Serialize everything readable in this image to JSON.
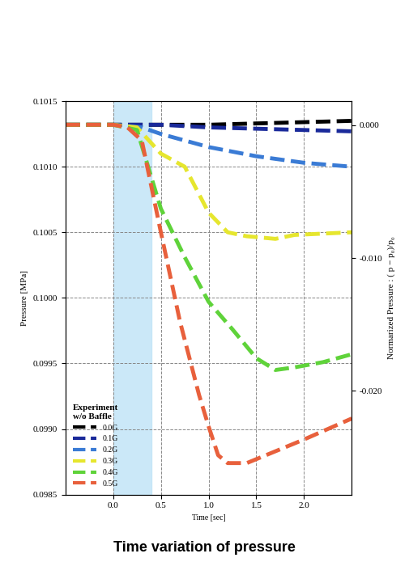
{
  "chart_data": {
    "type": "line",
    "title": "Time variation of pressure",
    "x_label": "Time [sec]",
    "y_label": "Pressure [MPa]",
    "y2_label": "Normarized Pressure : ( p − p₀)/p₀",
    "legend_title": "Experiment\nw/o Baffle",
    "legend": "lower left",
    "grid": true,
    "line_style": "dashed",
    "highlight": [
      0.0,
      0.4
    ],
    "xlim": [
      -0.5,
      2.5
    ],
    "xticks": [
      {
        "value": 0.0,
        "label": "0.0"
      },
      0.5,
      {
        "value": 1.0,
        "label": "1.0"
      },
      1.5,
      {
        "value": 2.0,
        "label": "2.0"
      }
    ],
    "ylim": [
      0.0985,
      0.1015
    ],
    "yticks": [
      0.0985,
      {
        "value": 0.099,
        "label": "0.0990"
      },
      0.0995,
      {
        "value": 0.1,
        "label": "0.1000"
      },
      0.1005,
      {
        "value": 0.101,
        "label": "0.1010"
      },
      0.1015
    ],
    "y2lim": [
      -0.0278,
      0.0018
    ],
    "y2ticks": [
      {
        "value": 0.0,
        "label": "0.000"
      },
      {
        "value": -0.01,
        "label": "-0.010"
      },
      {
        "value": -0.02,
        "label": "-0.020"
      }
    ],
    "series": [
      {
        "name": "0.0G",
        "color": "#000000",
        "x": [
          -0.5,
          0.0,
          0.5,
          1.0,
          1.5,
          2.0,
          2.5
        ],
        "values": [
          0.10132,
          0.10132,
          0.10132,
          0.10132,
          0.10133,
          0.10134,
          0.10135
        ]
      },
      {
        "name": "0.1G",
        "color": "#1a2a9a",
        "x": [
          -0.5,
          0.0,
          0.5,
          1.0,
          1.5,
          2.0,
          2.5
        ],
        "values": [
          0.10132,
          0.10132,
          0.10132,
          0.1013,
          0.10129,
          0.10128,
          0.10127
        ]
      },
      {
        "name": "0.2G",
        "color": "#3a7bd5",
        "x": [
          -0.5,
          0.0,
          0.3,
          0.5,
          1.0,
          1.5,
          2.0,
          2.5
        ],
        "values": [
          0.10132,
          0.10132,
          0.1013,
          0.10125,
          0.10115,
          0.10108,
          0.10103,
          0.101
        ]
      },
      {
        "name": "0.3G",
        "color": "#e6e62e",
        "x": [
          -0.5,
          0.0,
          0.25,
          0.5,
          0.75,
          1.0,
          1.2,
          1.4,
          1.7,
          1.9,
          2.2,
          2.5
        ],
        "values": [
          0.10132,
          0.10132,
          0.1013,
          0.1011,
          0.101,
          0.10065,
          0.1005,
          0.10047,
          0.10045,
          0.10048,
          0.10049,
          0.1005
        ]
      },
      {
        "name": "0.4G",
        "color": "#5fd33a",
        "x": [
          -0.5,
          0.0,
          0.25,
          0.5,
          0.75,
          1.0,
          1.25,
          1.5,
          1.7,
          1.9,
          2.2,
          2.5
        ],
        "values": [
          0.10132,
          0.10132,
          0.10128,
          0.10068,
          0.10031,
          0.09997,
          0.09976,
          0.09954,
          0.09945,
          0.09947,
          0.09951,
          0.09957
        ]
      },
      {
        "name": "0.5G",
        "color": "#e8603c",
        "x": [
          -0.5,
          0.0,
          0.15,
          0.3,
          0.5,
          0.7,
          0.9,
          1.0,
          1.1,
          1.2,
          1.4,
          1.6,
          2.0,
          2.5
        ],
        "values": [
          0.10132,
          0.10132,
          0.1013,
          0.1012,
          0.1005,
          0.09982,
          0.09926,
          0.09902,
          0.0988,
          0.09874,
          0.09874,
          0.0988,
          0.09892,
          0.09908
        ]
      }
    ]
  }
}
